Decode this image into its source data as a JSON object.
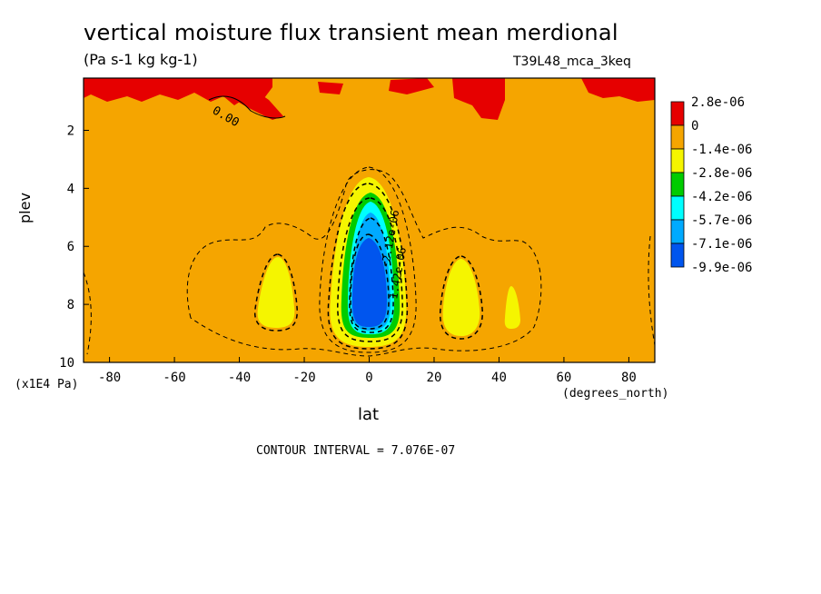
{
  "chart_data": {
    "type": "heatmap",
    "title": "vertical moisture flux transient mean merdional",
    "units": "(Pa s-1 kg kg-1)",
    "dataset": "T39L48_mca_3keq",
    "xlabel": "lat",
    "ylabel": "plev",
    "x_unit_label": "(degrees_north)",
    "y_unit_label": "(x1E4 Pa)",
    "xlim": [
      -88,
      88
    ],
    "ylim": [
      10,
      0.2
    ],
    "x_ticks": [
      "-80",
      "-60",
      "-40",
      "-20",
      "0",
      "20",
      "40",
      "60",
      "80"
    ],
    "y_ticks": [
      "2",
      "4",
      "6",
      "8",
      "10"
    ],
    "contour_interval_text": "CONTOUR INTERVAL = 7.076E-07",
    "contour_labels": [
      "0.00",
      "1.42e-06",
      "-2.12e-06"
    ],
    "colorbar": {
      "labels": [
        "2.8e-06",
        "0",
        "-1.4e-06",
        "-2.8e-06",
        "-4.2e-06",
        "-5.7e-06",
        "-7.1e-06",
        "-9.9e-06"
      ],
      "colors": [
        "#e60000",
        "#f5a500",
        "#f5f500",
        "#00cc00",
        "#00ffff",
        "#00aaff",
        "#0055ee"
      ]
    },
    "regions": [
      {
        "level": "positive",
        "color": "#e60000",
        "description_lat_range": [
          -88,
          -60
        ],
        "plev_range": [
          0.2,
          1.3
        ]
      },
      {
        "level": "positive",
        "color": "#e60000",
        "lat_range": [
          -55,
          -15
        ],
        "plev_range": [
          0.2,
          1.2
        ]
      },
      {
        "level": "positive",
        "color": "#e60000",
        "lat_range": [
          35,
          45
        ],
        "plev_range": [
          0.2,
          1.5
        ]
      },
      {
        "level": "positive",
        "color": "#e60000",
        "lat_range": [
          65,
          88
        ],
        "plev_range": [
          0.2,
          0.9
        ]
      },
      {
        "level": "-1.4e-06 to -2.8e-06",
        "color": "#f5f500",
        "lat_range": [
          -32,
          -24
        ],
        "plev_range": [
          6.3,
          8.8
        ]
      },
      {
        "level": "-1.4e-06 to -2.8e-06",
        "color": "#f5f500",
        "lat_range": [
          24,
          33
        ],
        "plev_range": [
          6.3,
          8.9
        ]
      },
      {
        "level": "-1.4e-06 to -2.8e-06",
        "color": "#f5f500",
        "lat_range": [
          42,
          46
        ],
        "plev_range": [
          7.3,
          8.7
        ]
      },
      {
        "level": "minimum core",
        "color": "#0055ee",
        "lat_range": [
          -3,
          5
        ],
        "plev_range": [
          5.0,
          8.8
        ],
        "min_value": -9.9e-06
      }
    ]
  }
}
